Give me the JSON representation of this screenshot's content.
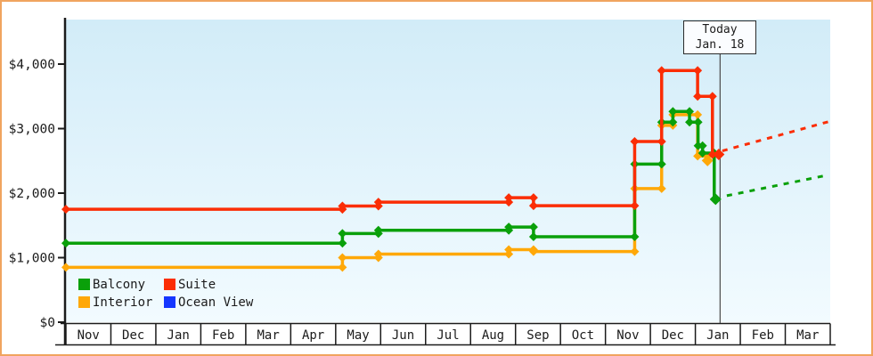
{
  "chart_data": {
    "type": "line-step",
    "title": "",
    "y_axis": {
      "tick_labels": [
        "$0",
        "$1,000",
        "$2,000",
        "$3,000",
        "$4,000"
      ],
      "tick_values": [
        0,
        1000,
        2000,
        3000,
        4000
      ],
      "range": [
        0,
        4700
      ]
    },
    "x_axis": {
      "month_labels": [
        "Nov",
        "Dec",
        "Jan",
        "Feb",
        "Mar",
        "Apr",
        "May",
        "Jun",
        "Jul",
        "Aug",
        "Sep",
        "Oct",
        "Nov",
        "Dec",
        "Jan",
        "Feb",
        "Mar"
      ]
    },
    "today": {
      "line1": "Today",
      "line2": "Jan. 18",
      "month_index": 14.55
    },
    "series": [
      {
        "name": "Interior",
        "color": "#ffa808",
        "points": [
          [
            0,
            850
          ],
          [
            6.15,
            1000
          ],
          [
            6.95,
            1055
          ],
          [
            9.85,
            1125
          ],
          [
            10.4,
            1095
          ],
          [
            12.65,
            2070
          ],
          [
            13.25,
            3050
          ],
          [
            13.5,
            3215
          ],
          [
            14.05,
            2575
          ],
          [
            14.27,
            2505
          ]
        ],
        "solid_end": null,
        "projection": null
      },
      {
        "name": "Balcony",
        "color": "#0aa00a",
        "points": [
          [
            0,
            1225
          ],
          [
            6.15,
            1375
          ],
          [
            6.95,
            1425
          ],
          [
            9.85,
            1475
          ],
          [
            10.4,
            1325
          ],
          [
            12.65,
            2450
          ],
          [
            13.25,
            3100
          ],
          [
            13.5,
            3265
          ],
          [
            13.87,
            3100
          ],
          [
            14.06,
            2735
          ],
          [
            14.16,
            2620
          ],
          [
            14.42,
            1905
          ]
        ],
        "solid_end": 14.45,
        "projection": [
          [
            14.7,
            1960
          ],
          [
            16.95,
            2280
          ]
        ]
      },
      {
        "name": "Suite",
        "color": "#fb2d05",
        "points": [
          [
            0,
            1750
          ],
          [
            6.15,
            1800
          ],
          [
            6.95,
            1860
          ],
          [
            9.85,
            1930
          ],
          [
            10.4,
            1805
          ],
          [
            12.65,
            2800
          ],
          [
            13.25,
            3900
          ],
          [
            14.05,
            3500
          ],
          [
            14.38,
            2600
          ]
        ],
        "solid_end": 14.52,
        "projection": [
          [
            14.6,
            2655
          ],
          [
            16.95,
            3105
          ]
        ]
      },
      {
        "name": "Ocean View",
        "color": "#1536ff",
        "points": [],
        "solid_end": null,
        "projection": null
      }
    ],
    "legend": [
      {
        "label": "Balcony",
        "color": "#0aa00a"
      },
      {
        "label": "Suite",
        "color": "#fb2d05"
      },
      {
        "label": "Interior",
        "color": "#ffa808"
      },
      {
        "label": "Ocean View",
        "color": "#1536ff"
      }
    ]
  },
  "colors": {
    "frame_border": "#f0a45f",
    "plot_bg_top": "#d2ecf8",
    "plot_bg_bottom": "#f2fbff",
    "axis": "#1b1b1b",
    "today_line": "#4a4a4a"
  }
}
